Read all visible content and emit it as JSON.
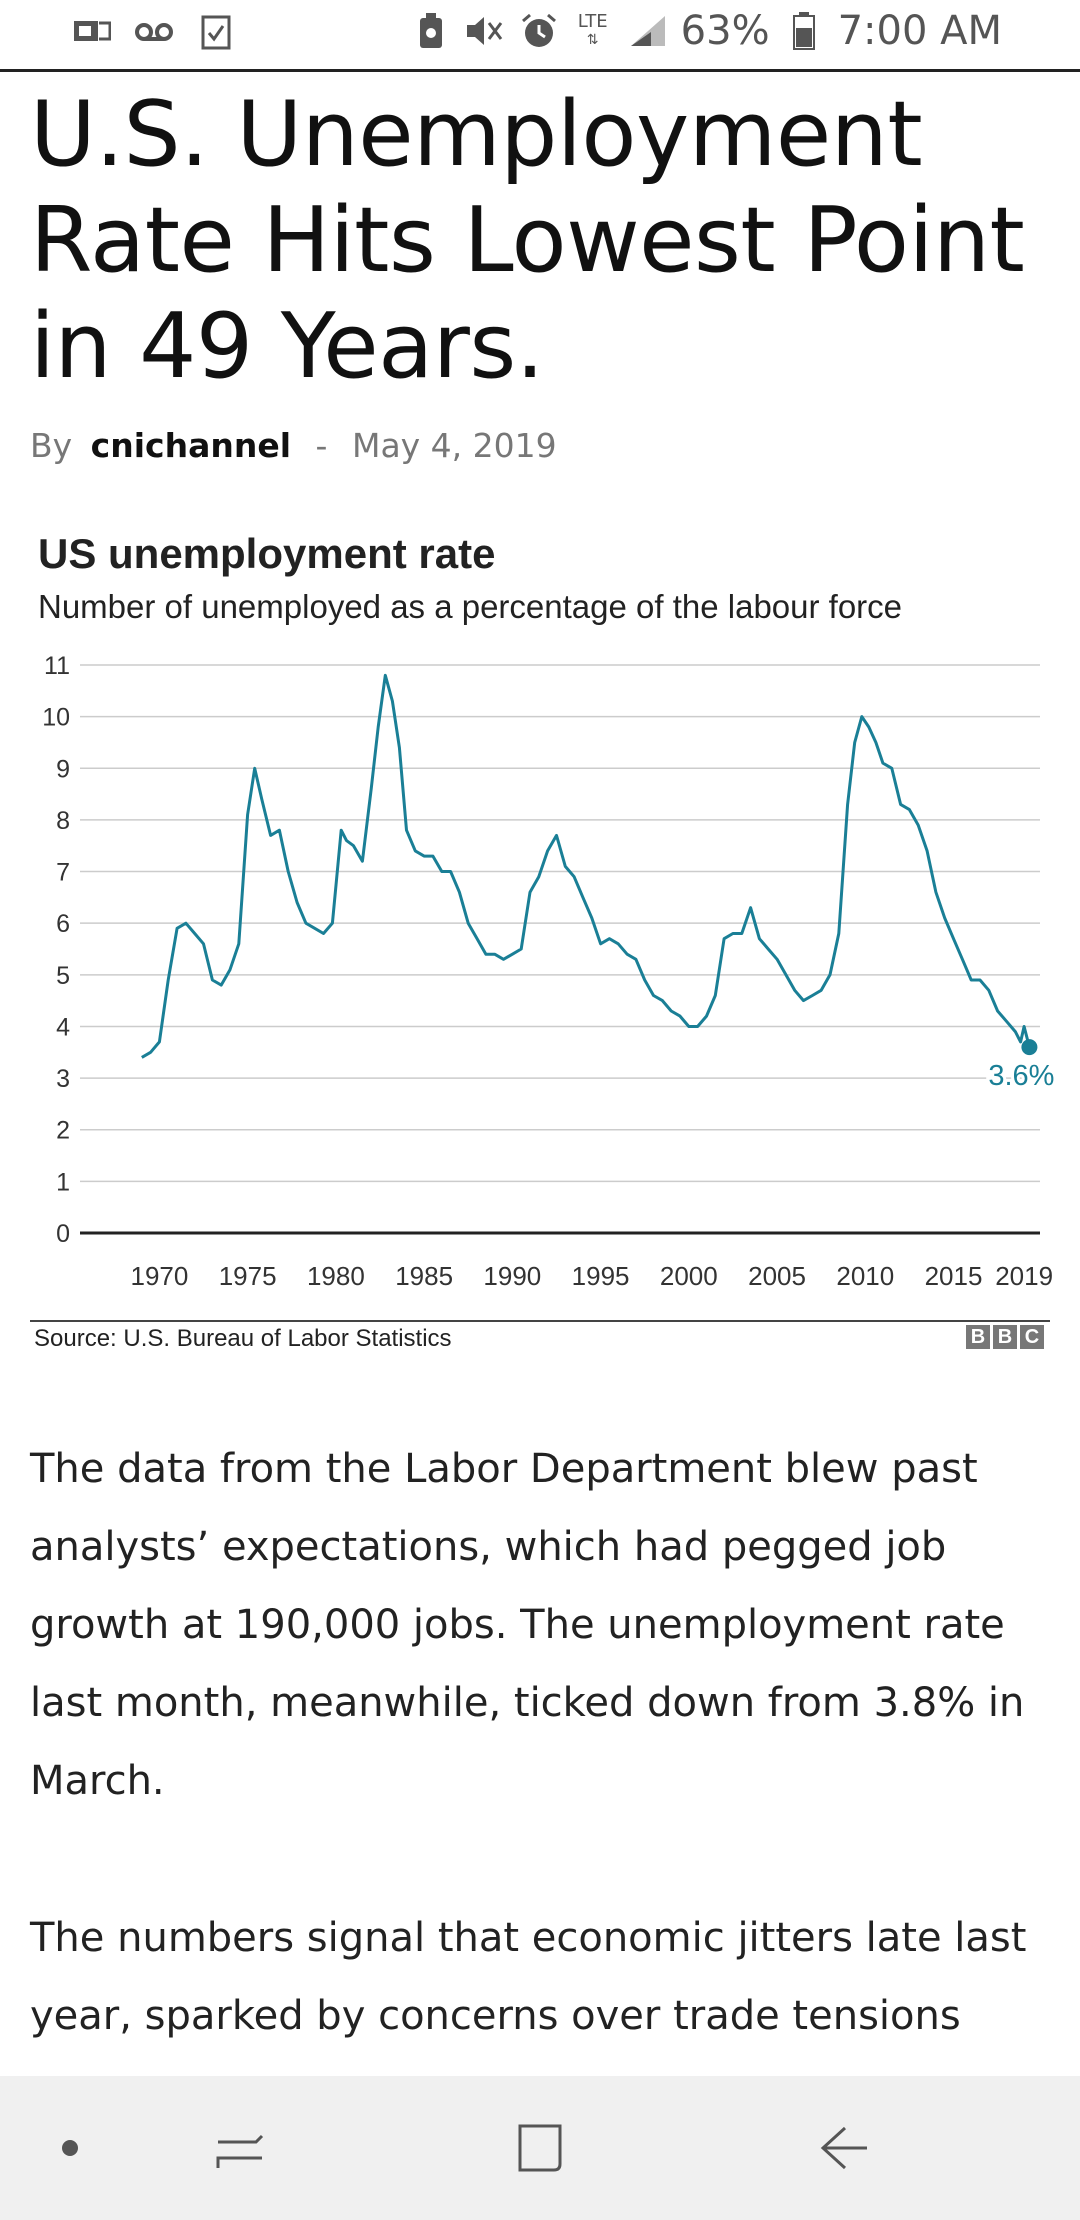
{
  "status_bar": {
    "icons_left": [
      "image-message-icon",
      "voicemail-icon",
      "task-check-icon"
    ],
    "icons_right": [
      "battery-saver-icon",
      "mute-icon",
      "alarm-icon",
      "lte-icon",
      "signal-icon",
      "battery-icon"
    ],
    "lte_label": "LTE",
    "battery": "63%",
    "time": "7:00 AM"
  },
  "article": {
    "headline": "U.S. Unemployment Rate Hits Lowest Point in 49 Years.",
    "by_label": "By",
    "author": "cnichannel",
    "separator": "-",
    "date": "May 4, 2019",
    "paragraphs": [
      "The data from the Labor Department blew past analysts’ expectations, which had pegged job growth at 190,000 jobs. The unemployment rate last month, meanwhile, ticked down from 3.8% in March.",
      "The numbers signal that economic jitters late last year, sparked by concerns over trade tensions with"
    ]
  },
  "chart_data": {
    "type": "line",
    "title": "US unemployment rate",
    "subtitle": "Number of unemployed as a percentage of the labour force",
    "xlabel": "",
    "ylabel": "",
    "xlim": [
      1965.5,
      2019.9
    ],
    "ylim": [
      0,
      11
    ],
    "yticks": [
      "0",
      "1",
      "2",
      "3",
      "4",
      "5",
      "6",
      "7",
      "8",
      "9",
      "10",
      "11"
    ],
    "xticks": [
      "1970",
      "1975",
      "1980",
      "1985",
      "1990",
      "1995",
      "2000",
      "2005",
      "2010",
      "2015",
      "2019"
    ],
    "grid": true,
    "line_color": "#1a7f96",
    "series": [
      {
        "x": [
          1969.0,
          1969.5,
          1970.0,
          1970.5,
          1971.0,
          1971.5,
          1972.0,
          1972.5,
          1973.0,
          1973.5,
          1974.0,
          1974.5,
          1975.0,
          1975.4,
          1975.8,
          1976.3,
          1976.8,
          1977.3,
          1977.8,
          1978.3,
          1978.8,
          1979.3,
          1979.8,
          1980.3,
          1980.6,
          1981.0,
          1981.5,
          1982.0,
          1982.4,
          1982.8,
          1983.2,
          1983.6,
          1984.0,
          1984.5,
          1985.0,
          1985.5,
          1986.0,
          1986.5,
          1987.0,
          1987.5,
          1988.0,
          1988.5,
          1989.0,
          1989.5,
          1990.0,
          1990.5,
          1991.0,
          1991.5,
          1992.0,
          1992.5,
          1993.0,
          1993.5,
          1994.0,
          1994.5,
          1995.0,
          1995.5,
          1996.0,
          1996.5,
          1997.0,
          1997.5,
          1998.0,
          1998.5,
          1999.0,
          1999.5,
          2000.0,
          2000.5,
          2001.0,
          2001.5,
          2002.0,
          2002.5,
          2003.0,
          2003.5,
          2004.0,
          2004.5,
          2005.0,
          2005.5,
          2006.0,
          2006.5,
          2007.0,
          2007.5,
          2008.0,
          2008.5,
          2009.0,
          2009.4,
          2009.8,
          2010.2,
          2010.6,
          2011.0,
          2011.5,
          2012.0,
          2012.5,
          2013.0,
          2013.5,
          2014.0,
          2014.5,
          2015.0,
          2015.5,
          2016.0,
          2016.5,
          2017.0,
          2017.5,
          2018.0,
          2018.5,
          2018.8,
          2019.0,
          2019.3
        ],
        "y": [
          3.4,
          3.5,
          3.7,
          4.9,
          5.9,
          6.0,
          5.8,
          5.6,
          4.9,
          4.8,
          5.1,
          5.6,
          8.1,
          9.0,
          8.4,
          7.7,
          7.8,
          7.0,
          6.4,
          6.0,
          5.9,
          5.8,
          6.0,
          7.8,
          7.6,
          7.5,
          7.2,
          8.6,
          9.8,
          10.8,
          10.3,
          9.4,
          7.8,
          7.4,
          7.3,
          7.3,
          7.0,
          7.0,
          6.6,
          6.0,
          5.7,
          5.4,
          5.4,
          5.3,
          5.4,
          5.5,
          6.6,
          6.9,
          7.4,
          7.7,
          7.1,
          6.9,
          6.5,
          6.1,
          5.6,
          5.7,
          5.6,
          5.4,
          5.3,
          4.9,
          4.6,
          4.5,
          4.3,
          4.2,
          4.0,
          4.0,
          4.2,
          4.6,
          5.7,
          5.8,
          5.8,
          6.3,
          5.7,
          5.5,
          5.3,
          5.0,
          4.7,
          4.5,
          4.6,
          4.7,
          5.0,
          5.8,
          8.3,
          9.5,
          10.0,
          9.8,
          9.5,
          9.1,
          9.0,
          8.3,
          8.2,
          7.9,
          7.4,
          6.6,
          6.1,
          5.7,
          5.3,
          4.9,
          4.9,
          4.7,
          4.3,
          4.1,
          3.9,
          3.7,
          4.0,
          3.6
        ]
      }
    ],
    "end_label": "3.6%",
    "source": "Source: U.S. Bureau of Labor Statistics",
    "logo": [
      "B",
      "B",
      "C"
    ]
  },
  "nav_bar": {
    "buttons": [
      "dot-indicator-icon",
      "recent-apps-icon",
      "home-icon",
      "back-icon"
    ]
  }
}
